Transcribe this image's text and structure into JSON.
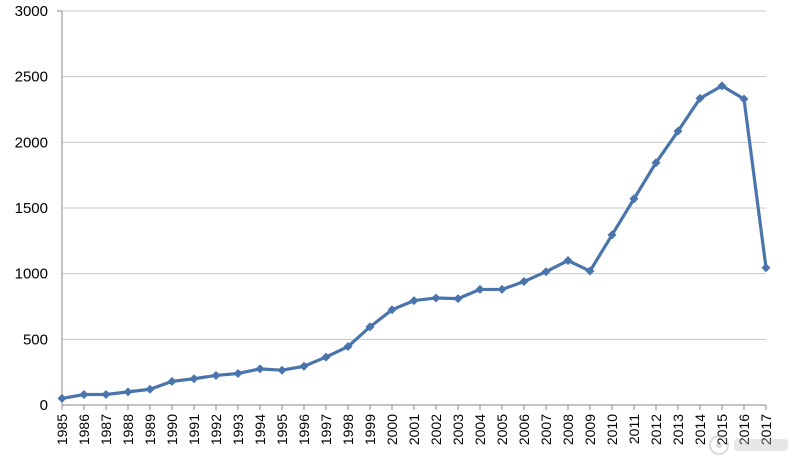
{
  "chart_data": {
    "type": "line",
    "title": "",
    "xlabel": "",
    "ylabel": "",
    "ylim": [
      0,
      3000
    ],
    "y_ticks": [
      0,
      500,
      1000,
      1500,
      2000,
      2500,
      3000
    ],
    "grid": "horizontal",
    "categories": [
      "1985",
      "1986",
      "1987",
      "1988",
      "1989",
      "1990",
      "1991",
      "1992",
      "1993",
      "1994",
      "1995",
      "1996",
      "1997",
      "1998",
      "1999",
      "2000",
      "2001",
      "2002",
      "2003",
      "2004",
      "2005",
      "2006",
      "2007",
      "2008",
      "2009",
      "2010",
      "2011",
      "2012",
      "2013",
      "2014",
      "2015",
      "2016",
      "2017"
    ],
    "series": [
      {
        "color": "#4a74ac",
        "marker": "diamond",
        "values": [
          50,
          80,
          80,
          100,
          120,
          180,
          200,
          225,
          240,
          275,
          265,
          295,
          365,
          445,
          595,
          725,
          795,
          815,
          810,
          880,
          880,
          940,
          1015,
          1100,
          1020,
          1295,
          1570,
          1845,
          2085,
          2335,
          2430,
          2330,
          1045
        ]
      }
    ]
  }
}
